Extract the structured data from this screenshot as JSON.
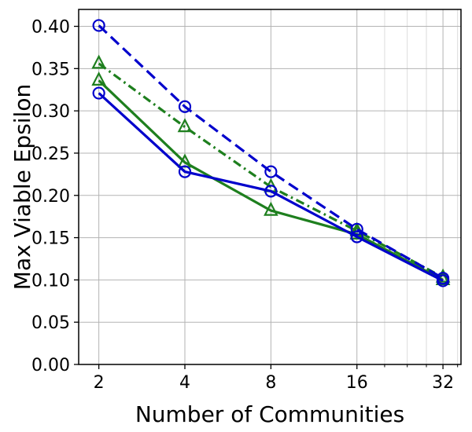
{
  "chart_data": {
    "type": "line",
    "title": "",
    "xlabel": "Number of Communities",
    "ylabel": "Max Viable Epsilon",
    "x_scale": "log2",
    "xlim": [
      1.7,
      37
    ],
    "ylim": [
      0.0,
      0.42
    ],
    "xticks": [
      2,
      4,
      8,
      16,
      32
    ],
    "minor_xticks": [
      20,
      24,
      28,
      36
    ],
    "yticks": [
      0.0,
      0.05,
      0.1,
      0.15,
      0.2,
      0.25,
      0.3,
      0.35,
      0.4
    ],
    "grid": true,
    "legend_position": "none",
    "x": [
      2,
      4,
      8,
      16,
      32
    ],
    "series": [
      {
        "name": "green-dashdot-triangles",
        "color": "#1e7f1e",
        "linestyle": "dashdot",
        "marker": "triangle",
        "values": [
          0.356,
          0.281,
          0.21,
          0.158,
          0.103
        ]
      },
      {
        "name": "green-solid-triangles",
        "color": "#1e7f1e",
        "linestyle": "solid",
        "marker": "triangle",
        "values": [
          0.336,
          0.239,
          0.182,
          0.154,
          0.1
        ]
      },
      {
        "name": "blue-dashed-circles",
        "color": "#0000cc",
        "linestyle": "dashed",
        "marker": "circle",
        "values": [
          0.401,
          0.305,
          0.228,
          0.16,
          0.102
        ]
      },
      {
        "name": "blue-solid-circles",
        "color": "#0000cc",
        "linestyle": "solid",
        "marker": "circle",
        "values": [
          0.321,
          0.228,
          0.205,
          0.151,
          0.099
        ]
      }
    ]
  }
}
